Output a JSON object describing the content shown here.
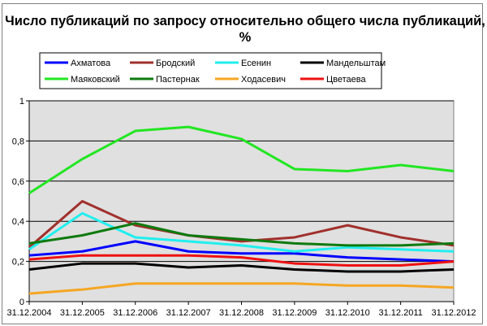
{
  "chart_data": {
    "type": "line",
    "title": "Число публикаций по запросу относительно общего числа публикаций, %",
    "title_lines": [
      "Число публикаций по запросу относительно общего числа публикаций,",
      "%"
    ],
    "xlabel": "",
    "ylabel": "",
    "categories": [
      "31.12.2004",
      "31.12.2005",
      "31.12.2006",
      "31.12.2007",
      "31.12.2008",
      "31.12.2009",
      "31.12.2010",
      "31.12.2011",
      "31.12.2012"
    ],
    "ylim": [
      0,
      1
    ],
    "yticks": [
      "0",
      "0,2",
      "0,4",
      "0,6",
      "0,8",
      "1"
    ],
    "grid": true,
    "plot_background": "#e0e0e0",
    "legend_position": "top",
    "series": [
      {
        "name": "Ахматова",
        "color": "#0000ff",
        "values": [
          0.23,
          0.25,
          0.3,
          0.25,
          0.24,
          0.24,
          0.22,
          0.21,
          0.2
        ]
      },
      {
        "name": "Бродский",
        "color": "#a0302c",
        "values": [
          0.27,
          0.5,
          0.38,
          0.33,
          0.3,
          0.32,
          0.38,
          0.32,
          0.28
        ]
      },
      {
        "name": "Есенин",
        "color": "#22eeee",
        "values": [
          0.26,
          0.44,
          0.32,
          0.3,
          0.28,
          0.25,
          0.27,
          0.26,
          0.25
        ]
      },
      {
        "name": "Мандельштам",
        "color": "#000000",
        "values": [
          0.16,
          0.19,
          0.19,
          0.17,
          0.18,
          0.16,
          0.15,
          0.15,
          0.16
        ]
      },
      {
        "name": "Маяковский",
        "color": "#22e622",
        "values": [
          0.54,
          0.71,
          0.85,
          0.87,
          0.81,
          0.66,
          0.65,
          0.68,
          0.65
        ]
      },
      {
        "name": "Пастернак",
        "color": "#0e7a0e",
        "values": [
          0.29,
          0.33,
          0.39,
          0.33,
          0.31,
          0.29,
          0.28,
          0.28,
          0.29
        ]
      },
      {
        "name": "Ходасевич",
        "color": "#f5a623",
        "values": [
          0.04,
          0.06,
          0.09,
          0.09,
          0.09,
          0.09,
          0.08,
          0.08,
          0.07
        ]
      },
      {
        "name": "Цветаева",
        "color": "#ee1111",
        "values": [
          0.21,
          0.23,
          0.23,
          0.23,
          0.22,
          0.19,
          0.18,
          0.18,
          0.2
        ]
      }
    ]
  }
}
